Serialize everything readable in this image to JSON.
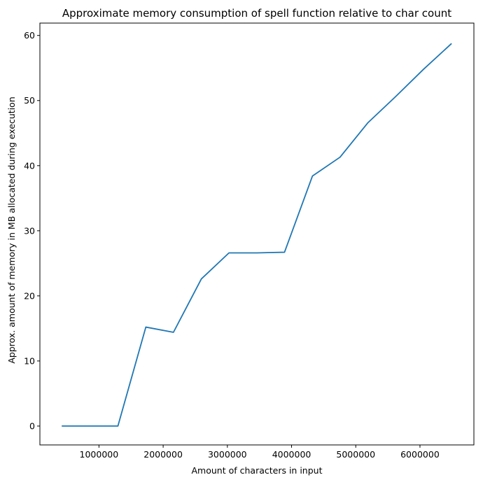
{
  "chart_data": {
    "type": "line",
    "title": "Approximate memory consumption of spell function relative to char count",
    "xlabel": "Amount of characters in input",
    "ylabel": "Approx. amount of memory in MB allocated during execution",
    "xlim": [
      80000,
      6840000
    ],
    "ylim": [
      -2.9,
      61.9
    ],
    "xticks": [
      1000000,
      2000000,
      3000000,
      4000000,
      5000000,
      6000000
    ],
    "xtick_labels": [
      "1000000",
      "2000000",
      "3000000",
      "4000000",
      "5000000",
      "6000000"
    ],
    "yticks": [
      0,
      10,
      20,
      30,
      40,
      50,
      60
    ],
    "ytick_labels": [
      "0",
      "10",
      "20",
      "30",
      "40",
      "50",
      "60"
    ],
    "grid": false,
    "series": [
      {
        "color": "#1f77b4",
        "x": [
          430000,
          865000,
          1295000,
          1730000,
          2160000,
          2595000,
          3025000,
          3460000,
          3890000,
          4325000,
          4755000,
          5190000,
          5620000,
          6055000,
          6485000
        ],
        "y": [
          0.0,
          0.0,
          0.0,
          15.2,
          14.4,
          22.6,
          26.6,
          26.6,
          26.7,
          38.4,
          41.3,
          46.6,
          50.6,
          54.8,
          58.7
        ]
      }
    ]
  }
}
